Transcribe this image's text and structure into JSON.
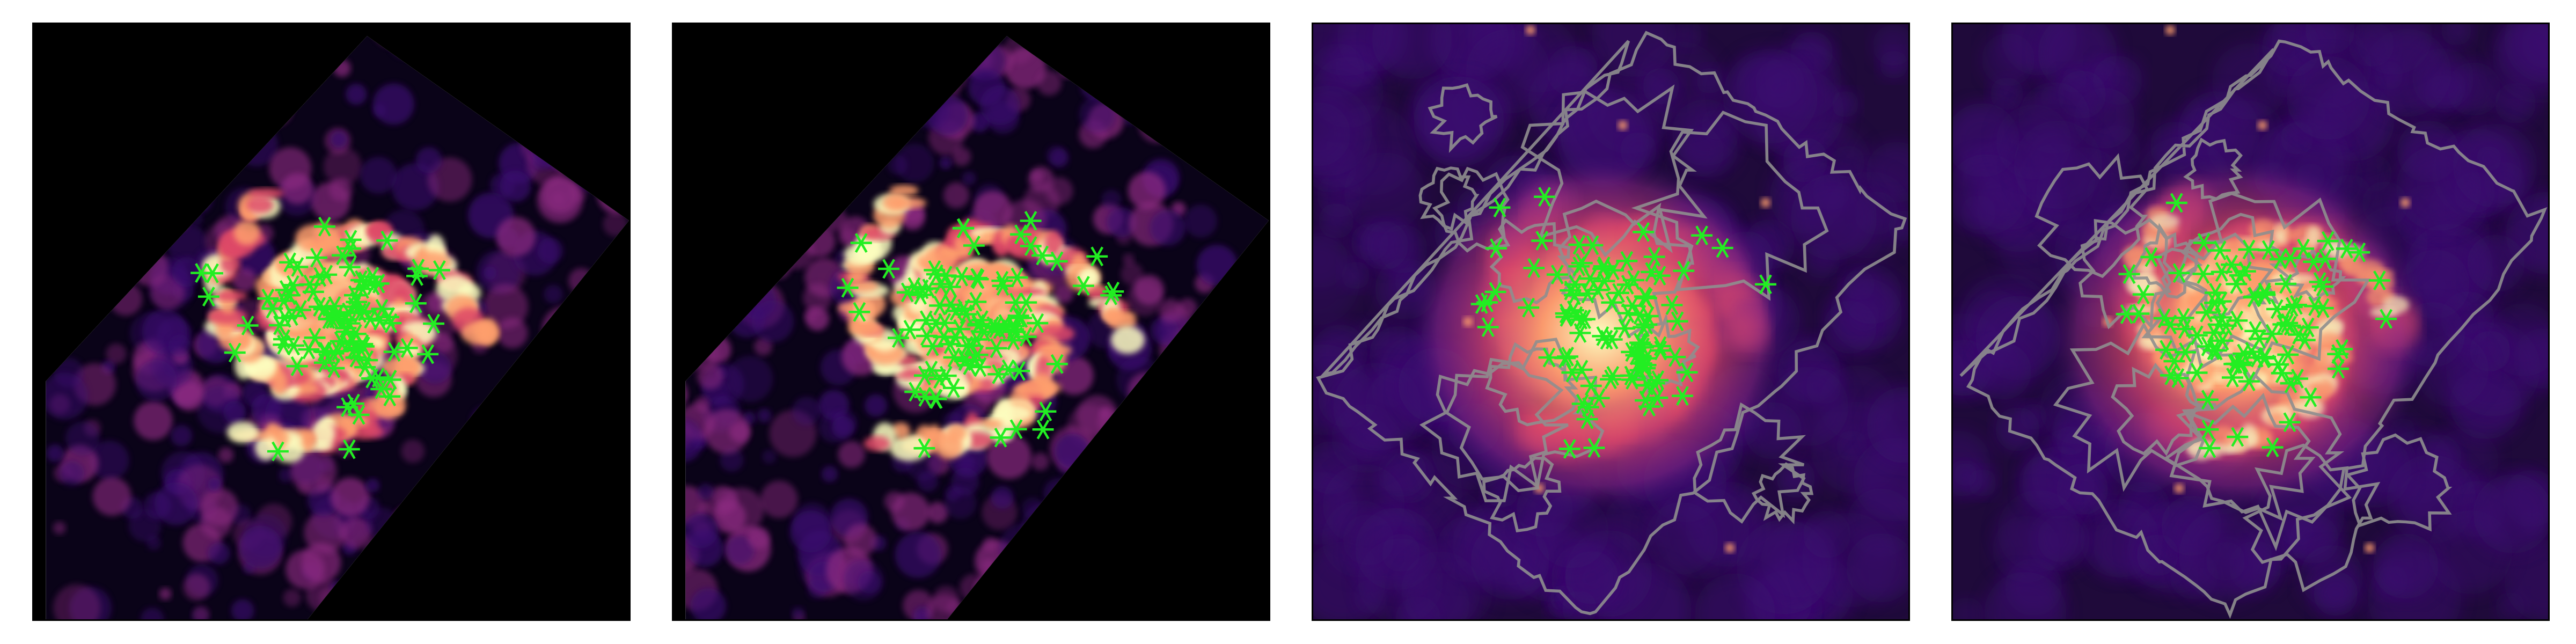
{
  "figure": {
    "panel_count": 4,
    "panels": [
      {
        "id": "panel-1",
        "background": "#000000",
        "has_contours": false,
        "marker_color": "#22ee22",
        "contour_color": "#888888",
        "region_color": "#000000",
        "marker_count": 98
      },
      {
        "id": "panel-2",
        "background": "#000000",
        "has_contours": false,
        "marker_color": "#22ee22",
        "contour_color": "#888888",
        "region_color": "#000000",
        "marker_count": 98
      },
      {
        "id": "panel-3",
        "background": "#2a0e45",
        "has_contours": true,
        "marker_color": "#22ee22",
        "contour_color": "#8f8f8f",
        "region_color": "#000000",
        "marker_count": 98
      },
      {
        "id": "panel-4",
        "background": "#2a0e45",
        "has_contours": true,
        "marker_color": "#22ee22",
        "contour_color": "#8f8f8f",
        "region_color": "#000000",
        "marker_count": 98
      }
    ],
    "colormap": [
      "#000004",
      "#3b0f70",
      "#8c2981",
      "#de4968",
      "#fe9f6d",
      "#fcfdbf"
    ]
  }
}
